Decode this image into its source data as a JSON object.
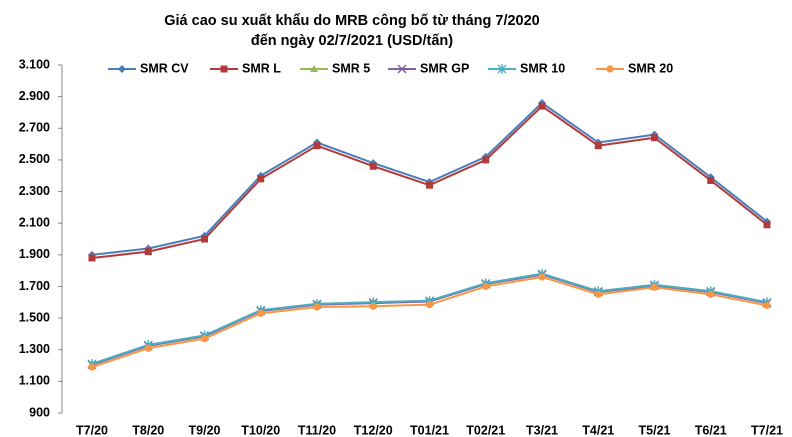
{
  "chart_data": {
    "type": "line",
    "title": "Giá cao su xuất khẩu do MRB công bố từ tháng 7/2020",
    "subtitle": "đến ngày 02/7/2021 (USD/tấn)",
    "categories": [
      "T7/20",
      "T8/20",
      "T9/20",
      "T10/20",
      "T11/20",
      "T12/20",
      "T01/21",
      "T02/21",
      "T3/21",
      "T4/21",
      "T5/21",
      "T6/21",
      "T7/21"
    ],
    "series": [
      {
        "name": "SMR CV",
        "color": "#4a7ebb",
        "marker": "diamond",
        "values": [
          1900,
          1940,
          2020,
          2400,
          2610,
          2480,
          2360,
          2520,
          2860,
          2610,
          2660,
          2390,
          2110
        ]
      },
      {
        "name": "SMR L",
        "color": "#b23a3a",
        "marker": "square",
        "values": [
          1880,
          1920,
          2000,
          2380,
          2590,
          2460,
          2340,
          2500,
          2840,
          2590,
          2640,
          2370,
          2090
        ]
      },
      {
        "name": "SMR 5",
        "color": "#98b954",
        "marker": "triangle",
        "values": [
          1210,
          1330,
          1390,
          1550,
          1590,
          1600,
          1610,
          1720,
          1780,
          1670,
          1710,
          1670,
          1600
        ]
      },
      {
        "name": "SMR GP",
        "color": "#7e62a1",
        "marker": "x",
        "values": [
          1205,
          1325,
          1385,
          1545,
          1585,
          1595,
          1605,
          1715,
          1775,
          1665,
          1705,
          1665,
          1595
        ]
      },
      {
        "name": "SMR 10",
        "color": "#4bacc6",
        "marker": "star",
        "values": [
          1210,
          1330,
          1390,
          1550,
          1590,
          1600,
          1610,
          1720,
          1780,
          1670,
          1710,
          1670,
          1600
        ]
      },
      {
        "name": "SMR 20",
        "color": "#f79646",
        "marker": "circle",
        "values": [
          1190,
          1310,
          1370,
          1530,
          1570,
          1575,
          1585,
          1700,
          1760,
          1650,
          1695,
          1650,
          1580
        ]
      }
    ],
    "ylim": [
      900,
      3100
    ],
    "yticks": [
      900,
      {
        "value": 1100,
        "label": "1.100"
      },
      {
        "value": 1300,
        "label": "1.300"
      },
      {
        "value": 1500,
        "label": "1.500"
      },
      {
        "value": 1700,
        "label": "1.700"
      },
      {
        "value": 1900,
        "label": "1.900"
      },
      {
        "value": 2100,
        "label": "2.100"
      },
      {
        "value": 2300,
        "label": "2.300"
      },
      {
        "value": 2500,
        "label": "2.500"
      },
      {
        "value": 2700,
        "label": "2.700"
      },
      {
        "value": 2900,
        "label": "2.900"
      },
      {
        "value": 3100,
        "label": "3.100"
      }
    ],
    "legend": "top"
  }
}
